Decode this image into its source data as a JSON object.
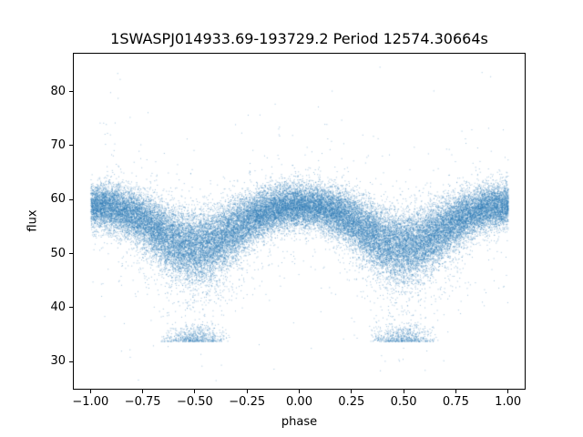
{
  "chart_data": {
    "type": "scatter",
    "title": "1SWASPJ014933.69-193729.2 Period 12574.30664s",
    "xlabel": "phase",
    "ylabel": "flux",
    "xlim": [
      -1.08,
      1.08
    ],
    "ylim": [
      25.0,
      87.0
    ],
    "grid": false,
    "marker_color": "#1f77b4",
    "marker_color_rgba": "rgba(49,124,181,0.45)",
    "x_ticks": [
      {
        "value": -1.0,
        "label": "−1.00"
      },
      {
        "value": -0.75,
        "label": "−0.75"
      },
      {
        "value": -0.5,
        "label": "−0.50"
      },
      {
        "value": -0.25,
        "label": "−0.25"
      },
      {
        "value": 0.0,
        "label": "0.00"
      },
      {
        "value": 0.25,
        "label": "0.25"
      },
      {
        "value": 0.5,
        "label": "0.50"
      },
      {
        "value": 0.75,
        "label": "0.75"
      },
      {
        "value": 1.0,
        "label": "1.00"
      }
    ],
    "y_ticks": [
      {
        "value": 30,
        "label": "30"
      },
      {
        "value": 40,
        "label": "40"
      },
      {
        "value": 50,
        "label": "50"
      },
      {
        "value": 60,
        "label": "60"
      },
      {
        "value": 70,
        "label": "70"
      },
      {
        "value": 80,
        "label": "80"
      }
    ],
    "model": {
      "description": "Phase-folded light curve of an eclipsing variable: dense scatter band with maxima (flux ~59) at phase 0 and ±1, broad minima (flux ~51.5) at phase ±0.5, plus a deep-eclipse clump of points near flux 34-37 around |phase| 0.33-0.67, with heavy-tailed outliers from ~27 up to ~85.",
      "n_points": 42000,
      "seed": 20250101,
      "phase_range": [
        -1,
        1
      ],
      "mean_curve": {
        "abs_phase": [
          0,
          0.1,
          0.2,
          0.25,
          0.3,
          0.35,
          0.4,
          0.45,
          0.5,
          0.55,
          0.6,
          0.65,
          0.7,
          0.75,
          0.8,
          0.9,
          1.0
        ],
        "flux": [
          59,
          58.6,
          57.3,
          56.2,
          54.9,
          53.6,
          52.5,
          51.7,
          51.4,
          51.7,
          52.5,
          53.6,
          54.9,
          56.2,
          57.3,
          58.6,
          59
        ]
      },
      "noise_sigma_base": 2.0,
      "noise_sigma_dip_extra": 1.2,
      "low_tail_prob_at_dip": 0.12,
      "low_tail_depth": 16,
      "heavy_tail_prob": 0.02,
      "heavy_tail_sigma": 9,
      "flux_clip": [
        26.5,
        85
      ],
      "eclipse_clump": {
        "n_points": 1300,
        "abs_phase_center": 0.5,
        "abs_phase_halfwidth": 0.17,
        "flux_range": [
          33.8,
          37.5
        ]
      }
    }
  },
  "figure": {
    "background": "#ffffff",
    "spine_color": "#000000",
    "text_color": "#000000"
  }
}
